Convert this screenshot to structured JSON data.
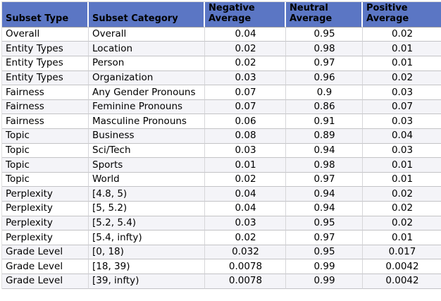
{
  "table": {
    "headers": [
      {
        "label": "Subset Type"
      },
      {
        "label": "Subset Category"
      },
      {
        "label": "Negative Average"
      },
      {
        "label": "Neutral Average"
      },
      {
        "label": "Positive Average"
      }
    ],
    "rows": [
      {
        "subset_type": "Overall",
        "subset_category": "Overall",
        "negative_average": "0.04",
        "neutral_average": "0.95",
        "positive_average": "0.02"
      },
      {
        "subset_type": "Entity Types",
        "subset_category": "Location",
        "negative_average": "0.02",
        "neutral_average": "0.98",
        "positive_average": "0.01"
      },
      {
        "subset_type": "Entity Types",
        "subset_category": "Person",
        "negative_average": "0.02",
        "neutral_average": "0.97",
        "positive_average": "0.01"
      },
      {
        "subset_type": "Entity Types",
        "subset_category": "Organization",
        "negative_average": "0.03",
        "neutral_average": "0.96",
        "positive_average": "0.02"
      },
      {
        "subset_type": "Fairness",
        "subset_category": "Any Gender Pronouns",
        "negative_average": "0.07",
        "neutral_average": "0.9",
        "positive_average": "0.03"
      },
      {
        "subset_type": "Fairness",
        "subset_category": "Feminine Pronouns",
        "negative_average": "0.07",
        "neutral_average": "0.86",
        "positive_average": "0.07"
      },
      {
        "subset_type": "Fairness",
        "subset_category": "Masculine Pronouns",
        "negative_average": "0.06",
        "neutral_average": "0.91",
        "positive_average": "0.03"
      },
      {
        "subset_type": "Topic",
        "subset_category": "Business",
        "negative_average": "0.08",
        "neutral_average": "0.89",
        "positive_average": "0.04"
      },
      {
        "subset_type": "Topic",
        "subset_category": "Sci/Tech",
        "negative_average": "0.03",
        "neutral_average": "0.94",
        "positive_average": "0.03"
      },
      {
        "subset_type": "Topic",
        "subset_category": "Sports",
        "negative_average": "0.01",
        "neutral_average": "0.98",
        "positive_average": "0.01"
      },
      {
        "subset_type": "Topic",
        "subset_category": "World",
        "negative_average": "0.02",
        "neutral_average": "0.97",
        "positive_average": "0.01"
      },
      {
        "subset_type": "Perplexity",
        "subset_category": "[4.8, 5)",
        "negative_average": "0.04",
        "neutral_average": "0.94",
        "positive_average": "0.02"
      },
      {
        "subset_type": "Perplexity",
        "subset_category": "[5, 5.2)",
        "negative_average": "0.04",
        "neutral_average": "0.94",
        "positive_average": "0.02"
      },
      {
        "subset_type": "Perplexity",
        "subset_category": "[5.2, 5.4)",
        "negative_average": "0.03",
        "neutral_average": "0.95",
        "positive_average": "0.02"
      },
      {
        "subset_type": "Perplexity",
        "subset_category": "[5.4, infty)",
        "negative_average": "0.02",
        "neutral_average": "0.97",
        "positive_average": "0.01"
      },
      {
        "subset_type": "Grade Level",
        "subset_category": "[0, 18)",
        "negative_average": "0.032",
        "neutral_average": "0.95",
        "positive_average": "0.017"
      },
      {
        "subset_type": "Grade Level",
        "subset_category": "[18, 39)",
        "negative_average": "0.0078",
        "neutral_average": "0.99",
        "positive_average": "0.0042"
      },
      {
        "subset_type": "Grade Level",
        "subset_category": "[39, infty)",
        "negative_average": "0.0078",
        "neutral_average": "0.99",
        "positive_average": "0.0042"
      }
    ]
  },
  "chart_data": {
    "type": "table",
    "columns": [
      "Subset Type",
      "Subset Category",
      "Negative Average",
      "Neutral Average",
      "Positive Average"
    ],
    "rows": [
      [
        "Overall",
        "Overall",
        0.04,
        0.95,
        0.02
      ],
      [
        "Entity Types",
        "Location",
        0.02,
        0.98,
        0.01
      ],
      [
        "Entity Types",
        "Person",
        0.02,
        0.97,
        0.01
      ],
      [
        "Entity Types",
        "Organization",
        0.03,
        0.96,
        0.02
      ],
      [
        "Fairness",
        "Any Gender Pronouns",
        0.07,
        0.9,
        0.03
      ],
      [
        "Fairness",
        "Feminine Pronouns",
        0.07,
        0.86,
        0.07
      ],
      [
        "Fairness",
        "Masculine Pronouns",
        0.06,
        0.91,
        0.03
      ],
      [
        "Topic",
        "Business",
        0.08,
        0.89,
        0.04
      ],
      [
        "Topic",
        "Sci/Tech",
        0.03,
        0.94,
        0.03
      ],
      [
        "Topic",
        "Sports",
        0.01,
        0.98,
        0.01
      ],
      [
        "Topic",
        "World",
        0.02,
        0.97,
        0.01
      ],
      [
        "Perplexity",
        "[4.8, 5)",
        0.04,
        0.94,
        0.02
      ],
      [
        "Perplexity",
        "[5, 5.2)",
        0.04,
        0.94,
        0.02
      ],
      [
        "Perplexity",
        "[5.2, 5.4)",
        0.03,
        0.95,
        0.02
      ],
      [
        "Perplexity",
        "[5.4, infty)",
        0.02,
        0.97,
        0.01
      ],
      [
        "Grade Level",
        "[0, 18)",
        0.032,
        0.95,
        0.017
      ],
      [
        "Grade Level",
        "[18, 39)",
        0.0078,
        0.99,
        0.0042
      ],
      [
        "Grade Level",
        "[39, infty)",
        0.0078,
        0.99,
        0.0042
      ]
    ],
    "title": "",
    "legend": "none",
    "grid": "on"
  },
  "colors": {
    "header_bg": "#5b76c4",
    "stripe_bg": "#f4f4f8",
    "row_bg": "#ffffff",
    "row_border": "#c3c3c6",
    "column_border": "#d6d6d9",
    "header_text": "#000000",
    "body_text": "#000000"
  }
}
